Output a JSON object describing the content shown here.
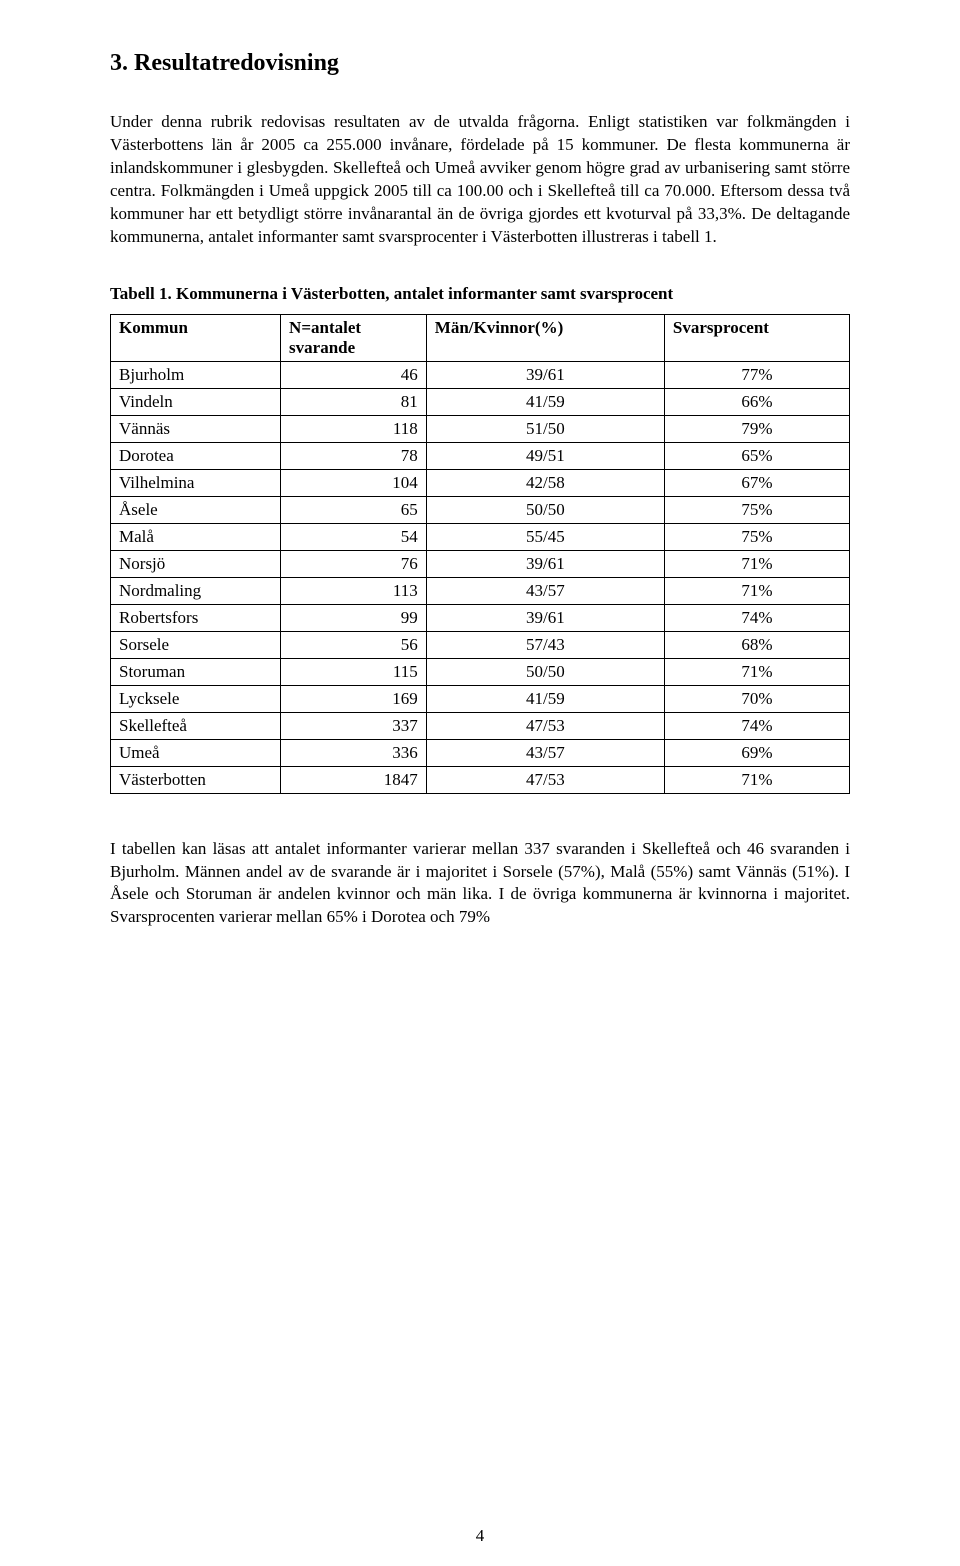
{
  "heading": "3. Resultatredovisning",
  "para1": "Under denna rubrik redovisas resultaten av de utvalda frågorna. Enligt statistiken var folkmängden i Västerbottens län år 2005 ca 255.000 invånare, fördelade på 15 kommuner. De flesta kommunerna är inlandskommuner i glesbygden. Skellefteå och Umeå avviker genom högre grad av urbanisering samt större centra. Folkmängden i Umeå uppgick 2005 till ca 100.00 och i Skellefteå till ca 70.000. Eftersom dessa två kommuner har ett betydligt större invånarantal än de övriga gjordes ett kvoturval på 33,3%. De deltagande kommunerna, antalet informanter samt svarsprocenter i Västerbotten illustreras i tabell 1.",
  "tableCaption": "Tabell 1. Kommunerna i Västerbotten, antalet informanter samt svarsprocent",
  "table": {
    "headers": {
      "kommun": "Kommun",
      "n_line1": "N=antalet",
      "n_line2": "svarande",
      "mk": "Män/Kvinnor(%)",
      "pct": "Svarsprocent"
    },
    "rows": [
      {
        "kommun": "Bjurholm",
        "n": "46",
        "mk": "39/61",
        "pct": "77%"
      },
      {
        "kommun": "Vindeln",
        "n": "81",
        "mk": "41/59",
        "pct": "66%"
      },
      {
        "kommun": "Vännäs",
        "n": "118",
        "mk": "51/50",
        "pct": "79%"
      },
      {
        "kommun": "Dorotea",
        "n": "78",
        "mk": "49/51",
        "pct": "65%"
      },
      {
        "kommun": "Vilhelmina",
        "n": "104",
        "mk": "42/58",
        "pct": "67%"
      },
      {
        "kommun": "Åsele",
        "n": "65",
        "mk": "50/50",
        "pct": "75%"
      },
      {
        "kommun": "Malå",
        "n": "54",
        "mk": "55/45",
        "pct": "75%"
      },
      {
        "kommun": "Norsjö",
        "n": "76",
        "mk": "39/61",
        "pct": "71%"
      },
      {
        "kommun": "Nordmaling",
        "n": "113",
        "mk": "43/57",
        "pct": "71%"
      },
      {
        "kommun": "Robertsfors",
        "n": "99",
        "mk": "39/61",
        "pct": "74%"
      },
      {
        "kommun": "Sorsele",
        "n": "56",
        "mk": "57/43",
        "pct": "68%"
      },
      {
        "kommun": "Storuman",
        "n": "115",
        "mk": "50/50",
        "pct": "71%"
      },
      {
        "kommun": "Lycksele",
        "n": "169",
        "mk": "41/59",
        "pct": "70%"
      },
      {
        "kommun": "Skellefteå",
        "n": "337",
        "mk": "47/53",
        "pct": "74%"
      },
      {
        "kommun": "Umeå",
        "n": "336",
        "mk": "43/57",
        "pct": "69%"
      },
      {
        "kommun": "Västerbotten",
        "n": "1847",
        "mk": "47/53",
        "pct": "71%"
      }
    ]
  },
  "para2": "I tabellen kan läsas att antalet informanter varierar mellan 337 svaranden i Skellefteå och 46 svaranden i Bjurholm. Männen andel av de svarande är i majoritet i Sorsele (57%), Malå (55%) samt Vännäs (51%). I Åsele och Storuman är andelen kvinnor och män lika. I de övriga kommunerna är kvinnorna i majoritet. Svarsprocenten varierar mellan 65% i Dorotea och 79%",
  "pageNumber": "4"
}
